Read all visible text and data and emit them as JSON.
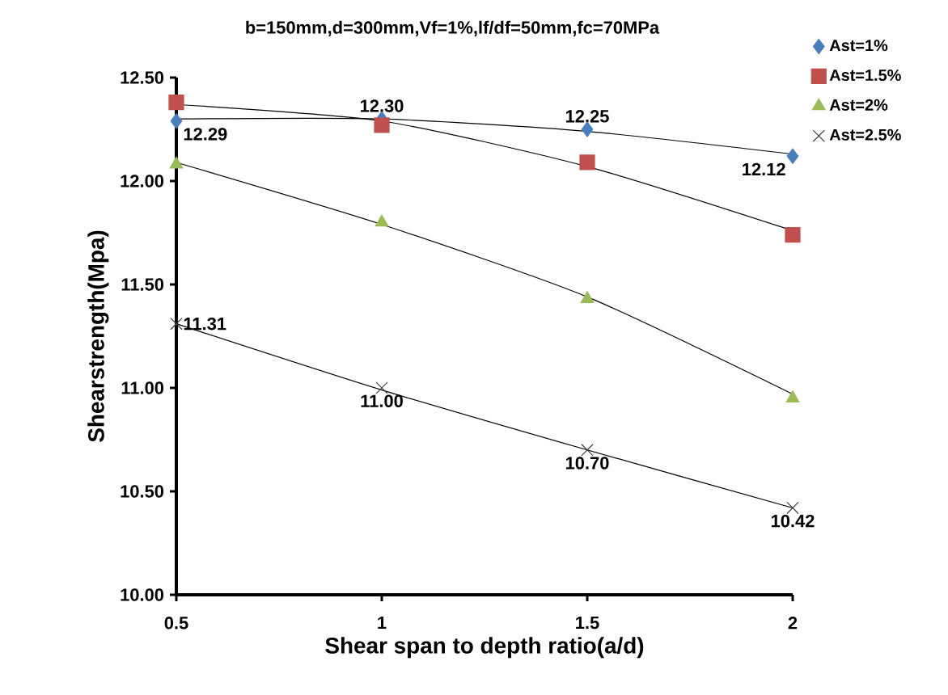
{
  "chart_data": {
    "type": "scatter",
    "title": "b=150mm,d=300mm,Vf=1%,lf/df=50mm,fc=70MPa",
    "xlabel": "Shear span to depth ratio(a/d)",
    "ylabel": "Shearstrength(Mpa)",
    "xlim": [
      0.5,
      2
    ],
    "xticks": [
      0.5,
      1,
      1.5,
      2
    ],
    "ylim": [
      10,
      12.5
    ],
    "yticks": [
      {
        "value": 10,
        "label": "10.00"
      },
      {
        "value": 10.5,
        "label": "10.50"
      },
      {
        "value": 11,
        "label": "11.00"
      },
      {
        "value": 11.5,
        "label": "11.50"
      },
      {
        "value": 12,
        "label": "12.00"
      },
      {
        "value": 12.5,
        "label": "12.50"
      }
    ],
    "grid": false,
    "legend": "right",
    "series": [
      {
        "name": "Ast=1%",
        "color": "#4a7ebb",
        "marker": "diamond",
        "x": [
          0.5,
          1,
          1.5,
          2
        ],
        "values": [
          12.29,
          12.3,
          12.25,
          12.12
        ],
        "value_labels": [
          "12.29",
          "12.30",
          "12.25",
          "12.12"
        ]
      },
      {
        "name": "Ast=1.5%",
        "color": "#c0504d",
        "marker": "square",
        "x": [
          0.5,
          1,
          1.5,
          2
        ],
        "values": [
          12.38,
          12.27,
          12.09,
          11.74
        ]
      },
      {
        "name": "Ast=2%",
        "color": "#9bbb59",
        "marker": "triangle",
        "x": [
          0.5,
          1,
          1.5,
          2
        ],
        "values": [
          12.08,
          11.8,
          11.43,
          10.95
        ]
      },
      {
        "name": "Ast=2.5%",
        "color": "#404040",
        "marker": "cross",
        "x": [
          0.5,
          1,
          1.5,
          2
        ],
        "values": [
          11.31,
          11.0,
          10.7,
          10.42
        ],
        "value_labels": [
          "11.31",
          "11.00",
          "10.70",
          "10.42"
        ]
      },
      {
        "type": "line",
        "color": "#000000",
        "marker": "none",
        "x": [
          0.5,
          1,
          1.5,
          2
        ],
        "values": [
          12.3,
          12.3,
          12.24,
          12.13
        ]
      },
      {
        "type": "line",
        "color": "#000000",
        "marker": "none",
        "x": [
          0.5,
          1,
          1.5,
          2
        ],
        "values": [
          12.37,
          12.29,
          12.07,
          11.76
        ]
      },
      {
        "type": "line",
        "color": "#000000",
        "marker": "none",
        "x": [
          0.5,
          1,
          1.5,
          2
        ],
        "values": [
          12.09,
          11.79,
          11.44,
          10.97
        ]
      },
      {
        "type": "line",
        "color": "#000000",
        "marker": "none",
        "x": [
          0.5,
          1,
          1.5,
          2
        ],
        "values": [
          11.31,
          10.99,
          10.7,
          10.42
        ]
      }
    ]
  }
}
